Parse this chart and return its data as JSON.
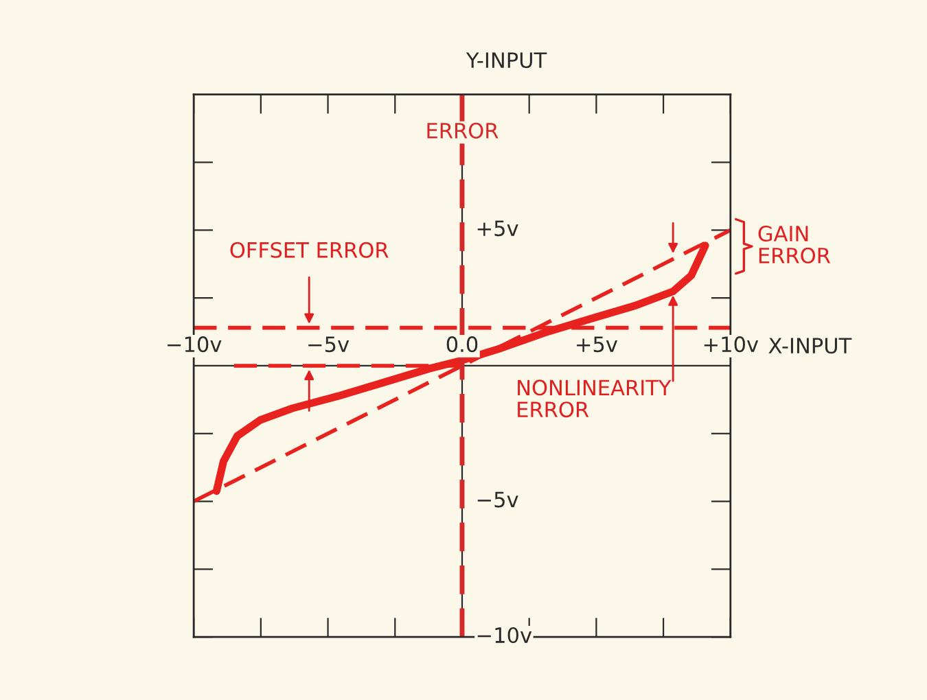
{
  "chart_data": {
    "type": "line",
    "xlabel": "X-INPUT",
    "ylabel": "Y-INPUT",
    "xlim": [
      -10,
      10
    ],
    "ylim": [
      -10,
      10
    ],
    "xticks": [
      {
        "value": -10,
        "label": "−10v"
      },
      {
        "value": -7.5,
        "label": null
      },
      {
        "value": -5,
        "label": "−5v"
      },
      {
        "value": -2.5,
        "label": null
      },
      {
        "value": 0,
        "label": "0.0"
      },
      {
        "value": 2.5,
        "label": null
      },
      {
        "value": 5,
        "label": "+5v"
      },
      {
        "value": 7.5,
        "label": null
      },
      {
        "value": 10,
        "label": "+10v"
      }
    ],
    "yticks": [
      {
        "value": -10,
        "label": "−10v"
      },
      {
        "value": -7.5,
        "label": null
      },
      {
        "value": -5,
        "label": "−5v"
      },
      {
        "value": -2.5,
        "label": null
      },
      {
        "value": 2.5,
        "label": null
      },
      {
        "value": 5,
        "label": "+5v"
      },
      {
        "value": 7.5,
        "label": null
      }
    ],
    "grid": false,
    "legend": false,
    "series": [
      {
        "color": "#e8231f",
        "line_style": "solid",
        "x": [
          -9.15,
          -8.89,
          -8.38,
          -7.52,
          -6.33,
          -4.62,
          -2.91,
          -1.2,
          0,
          1.36,
          3.08,
          4.78,
          6.49,
          7.86,
          8.54,
          9.06
        ],
        "values": [
          -4.62,
          -3.52,
          -2.59,
          -2.0,
          -1.57,
          -1.12,
          -0.61,
          -0.1,
          0.2,
          0.62,
          1.22,
          1.73,
          2.23,
          2.74,
          3.33,
          4.43
        ]
      },
      {
        "color": "#e8231f",
        "line_style": "dashed",
        "x": [
          -10,
          10
        ],
        "values": [
          -5,
          5
        ]
      },
      {
        "color": "#e8231f",
        "line_style": "dashed",
        "x": [
          -8.5,
          0
        ],
        "values": [
          0,
          0
        ]
      }
    ],
    "ref_lines": [
      {
        "axis": "x",
        "value": 0,
        "label": "ERROR",
        "color": "#d42a2a",
        "line_style": "dashed"
      },
      {
        "axis": "y",
        "value": 1.4,
        "label": null,
        "color": "#e8231f",
        "line_style": "dashed"
      }
    ],
    "annotations": [
      "OFFSET ERROR",
      {
        "text": "NONLINEARITY\nERROR",
        "x": 7.86,
        "y": 2.74
      },
      "GAIN\nERROR"
    ]
  }
}
